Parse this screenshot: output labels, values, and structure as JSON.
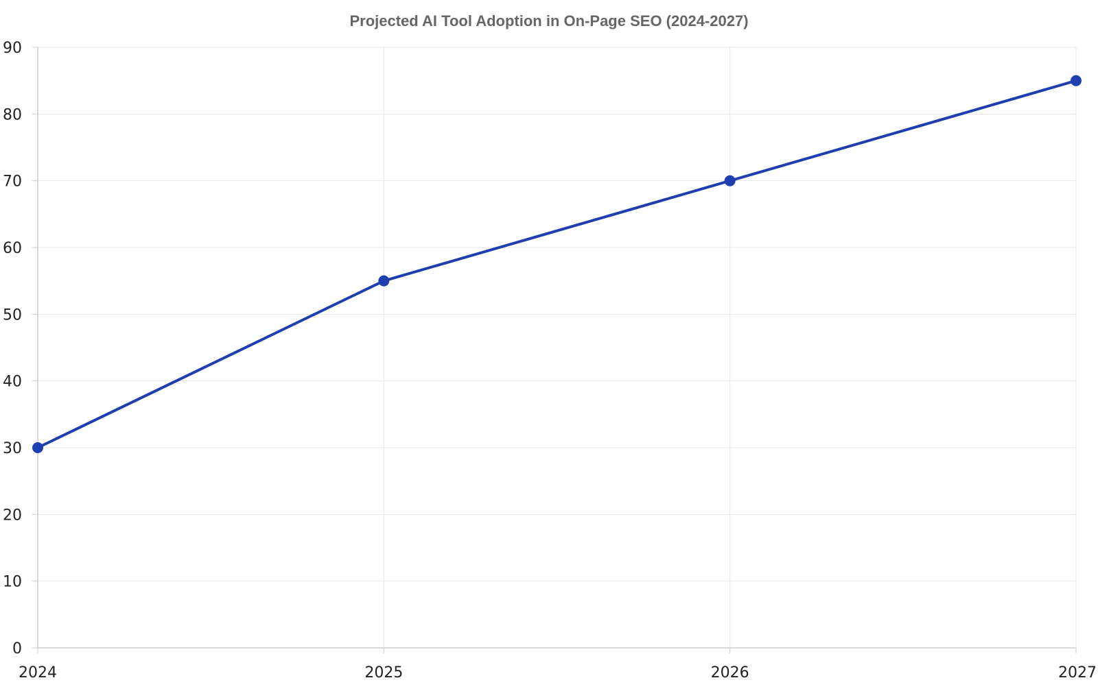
{
  "chart_data": {
    "type": "line",
    "title": "Projected AI Tool Adoption in On-Page SEO (2024-2027)",
    "xlabel": "",
    "ylabel": "",
    "x": [
      "2024",
      "2025",
      "2026",
      "2027"
    ],
    "series": [
      {
        "values": [
          30,
          55,
          70,
          85
        ],
        "color": "#1f3fb0"
      }
    ],
    "ylim": [
      0,
      90
    ],
    "yticks": [
      0,
      10,
      20,
      30,
      40,
      50,
      60,
      70,
      80,
      90
    ],
    "grid": true,
    "legend": "none"
  },
  "colors": {
    "title": "#666666",
    "grid": "#e6e6e6",
    "axis": "#cccccc",
    "tick_label": "#222222",
    "line": "#1f3fb0"
  }
}
